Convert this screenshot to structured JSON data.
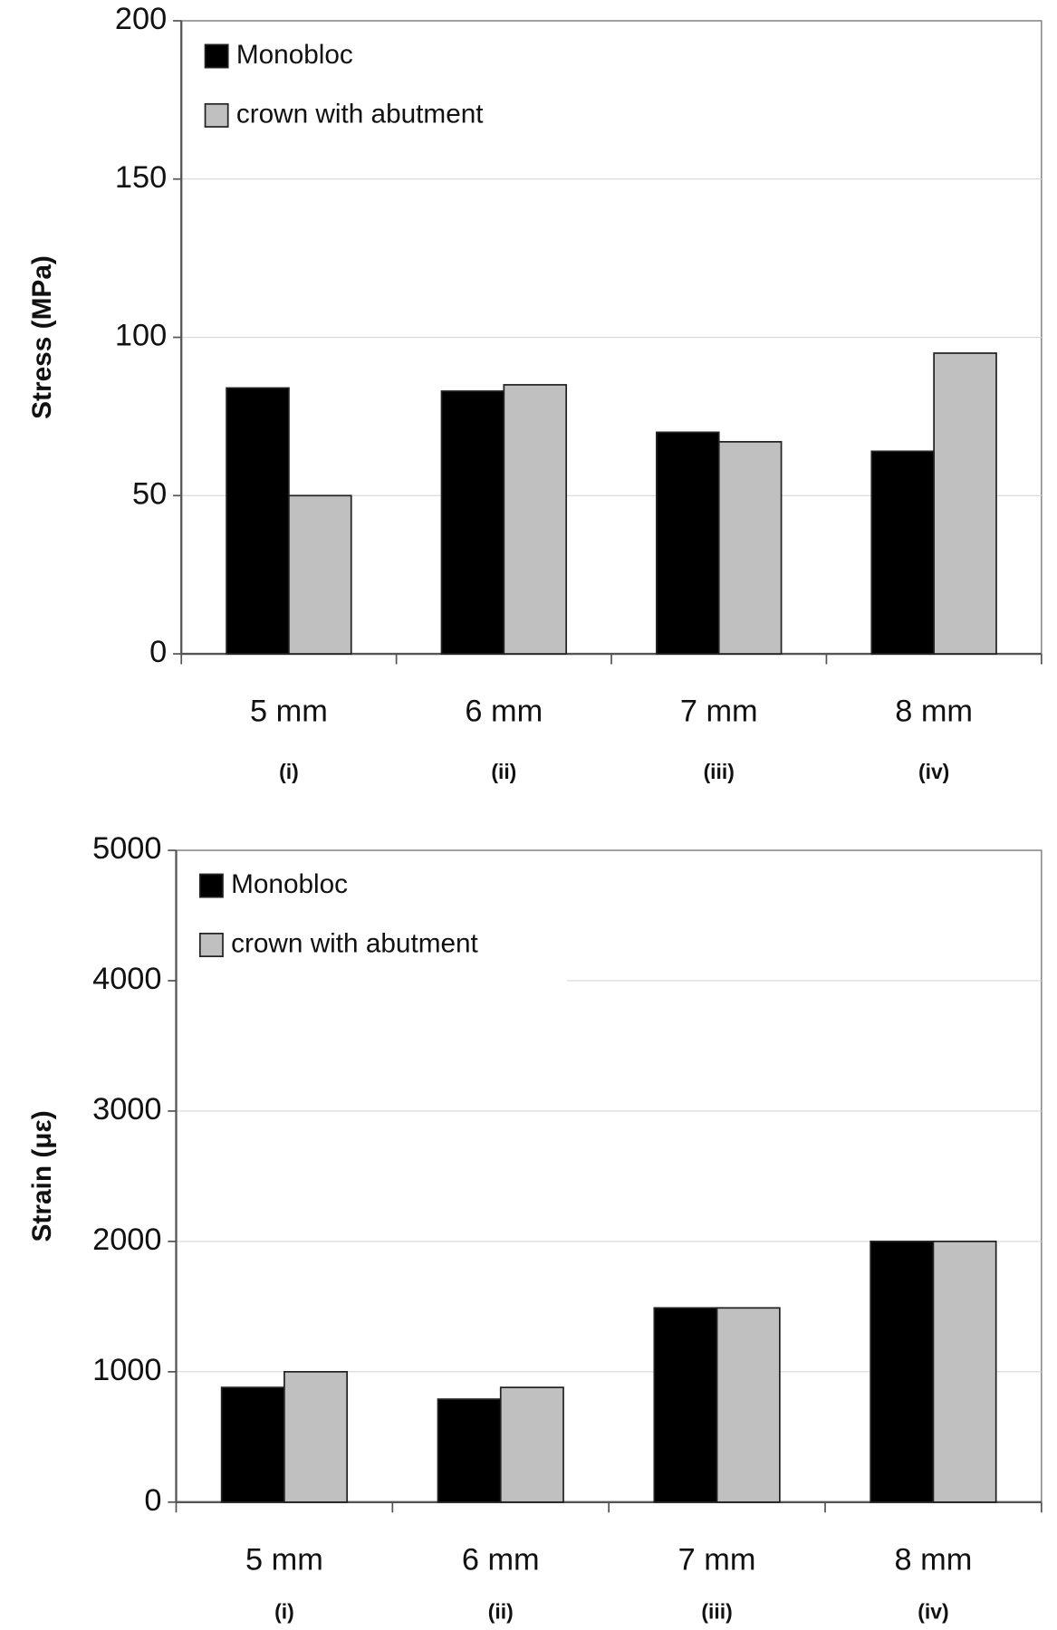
{
  "chart_data": [
    {
      "type": "bar",
      "ylabel": "Stress (MPa)",
      "categories": [
        "5 mm",
        "6 mm",
        "7 mm",
        "8 mm"
      ],
      "sublabels": [
        "(i)",
        "(ii)",
        "(iii)",
        "(iv)"
      ],
      "series": [
        {
          "name": "Monobloc",
          "color": "#000000",
          "values": [
            84,
            83,
            70,
            64
          ]
        },
        {
          "name": "crown with abutment",
          "color": "#c0c0c0",
          "values": [
            50,
            85,
            67,
            95
          ]
        }
      ],
      "ylim": [
        0,
        200
      ],
      "yticks": [
        0,
        50,
        100,
        150,
        200
      ],
      "grid": true,
      "legend": "upper left"
    },
    {
      "type": "bar",
      "ylabel": "Strain (με)",
      "categories": [
        "5 mm",
        "6 mm",
        "7 mm",
        "8 mm"
      ],
      "sublabels": [
        "(i)",
        "(ii)",
        "(iii)",
        "(iv)"
      ],
      "series": [
        {
          "name": "Monobloc",
          "color": "#000000",
          "values": [
            880,
            790,
            1490,
            2000
          ]
        },
        {
          "name": "crown with abutment",
          "color": "#c0c0c0",
          "values": [
            1000,
            880,
            1490,
            2000
          ]
        }
      ],
      "ylim": [
        0,
        5000
      ],
      "yticks": [
        0,
        1000,
        2000,
        3000,
        4000,
        5000
      ],
      "grid": true,
      "legend": "upper left"
    }
  ]
}
